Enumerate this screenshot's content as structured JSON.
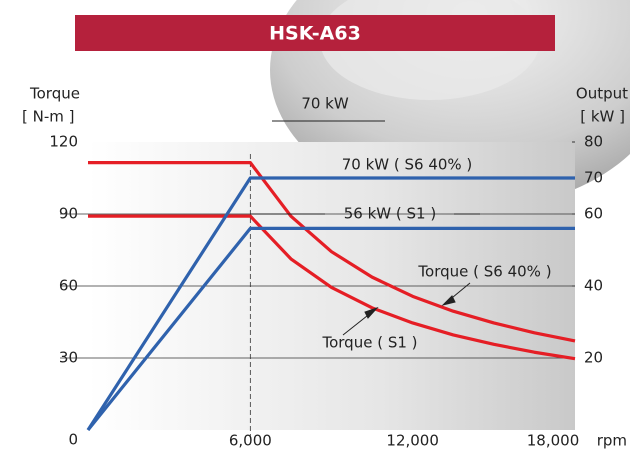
{
  "chart_data": {
    "type": "line",
    "title": "HSK-A63",
    "y_label": "Torque",
    "y_unit": "[ N-m ]",
    "y2_label": "Output",
    "y2_unit": "[ kW ]",
    "x_unit": "rpm",
    "annotation": "70 kW",
    "x": [
      0,
      6000,
      7500,
      9000,
      10500,
      12000,
      13500,
      15000,
      16500,
      18000
    ],
    "xlim": [
      0,
      18000
    ],
    "xticks": [
      {
        "value": 6000,
        "label": "6,000"
      },
      {
        "value": 12000,
        "label": "12,000"
      },
      {
        "value": 18000,
        "label": "18,000"
      }
    ],
    "ylim": [
      0,
      120
    ],
    "yticks": [
      0,
      30,
      60,
      90,
      120
    ],
    "y2lim": [
      0,
      80
    ],
    "y2ticks": [
      20,
      40,
      60,
      70,
      80
    ],
    "grid": true,
    "series": [
      {
        "name": "Torque ( S6 40% )",
        "color": "#e51e25",
        "values": [
          111.4,
          111.4,
          89.1,
          74.3,
          63.7,
          55.7,
          49.5,
          44.6,
          40.5,
          37.1
        ]
      },
      {
        "name": "Torque ( S1 )",
        "color": "#e51e25",
        "values": [
          89.1,
          89.1,
          71.3,
          59.4,
          50.9,
          44.6,
          39.6,
          35.7,
          32.4,
          29.7
        ]
      },
      {
        "name": "70 kW ( S6 40% )",
        "color": "#2f62ad",
        "axis": "y2",
        "values": [
          0,
          70,
          70,
          70,
          70,
          70,
          70,
          70,
          70,
          70
        ]
      },
      {
        "name": "56 kW ( S1 )",
        "color": "#2f62ad",
        "axis": "y2",
        "values": [
          0,
          56,
          56,
          56,
          56,
          56,
          56,
          56,
          56,
          56
        ]
      }
    ]
  }
}
